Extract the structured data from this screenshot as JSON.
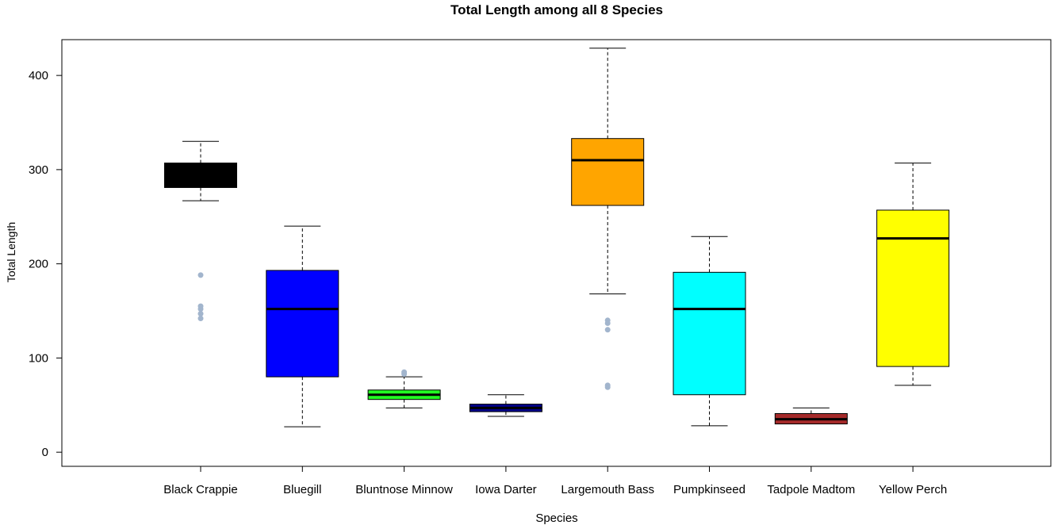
{
  "chart_data": {
    "type": "boxplot",
    "title": "Total Length among all 8 Species",
    "xlabel": "Species",
    "ylabel": "Total Length",
    "ylim": [
      -15,
      438
    ],
    "yticks": [
      0,
      100,
      200,
      300,
      400
    ],
    "series": [
      {
        "name": "Black Crappie",
        "color": "#000000",
        "whisker_low": 267,
        "q1": 281,
        "median": 302,
        "q3": 307,
        "whisker_high": 330,
        "outliers": [
          188,
          155,
          152,
          147,
          142
        ]
      },
      {
        "name": "Bluegill",
        "color": "#0000FF",
        "whisker_low": 27,
        "q1": 80,
        "median": 152,
        "q3": 193,
        "whisker_high": 240,
        "outliers": []
      },
      {
        "name": "Bluntnose Minnow",
        "color": "#22FF22",
        "whisker_low": 47,
        "q1": 56,
        "median": 61,
        "q3": 66,
        "whisker_high": 80,
        "outliers": [
          85,
          83
        ]
      },
      {
        "name": "Iowa Darter",
        "color": "#00008B",
        "whisker_low": 38,
        "q1": 43,
        "median": 47,
        "q3": 51,
        "whisker_high": 61,
        "outliers": []
      },
      {
        "name": "Largemouth Bass",
        "color": "#FFA500",
        "whisker_low": 168,
        "q1": 262,
        "median": 310,
        "q3": 333,
        "whisker_high": 429,
        "outliers": [
          140,
          137,
          130,
          71,
          69
        ]
      },
      {
        "name": "Pumpkinseed",
        "color": "#00FFFF",
        "whisker_low": 28,
        "q1": 61,
        "median": 152,
        "q3": 191,
        "whisker_high": 229,
        "outliers": []
      },
      {
        "name": "Tadpole Madtom",
        "color": "#A52A2A",
        "whisker_low": 30,
        "q1": 30,
        "median": 35,
        "q3": 41,
        "whisker_high": 47,
        "outliers": []
      },
      {
        "name": "Yellow Perch",
        "color": "#FFFF00",
        "whisker_low": 71,
        "q1": 91,
        "median": 227,
        "q3": 257,
        "whisker_high": 307,
        "outliers": []
      }
    ],
    "outlier_color": "#A2B5CD"
  }
}
